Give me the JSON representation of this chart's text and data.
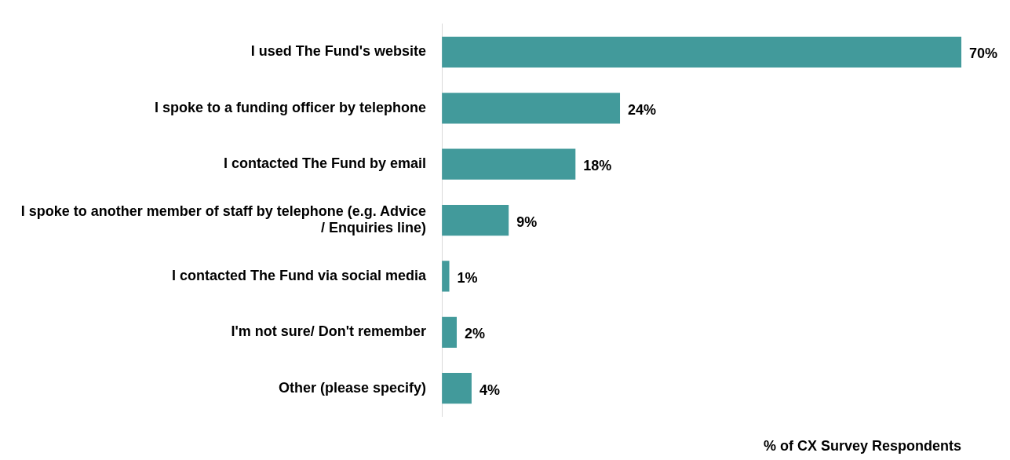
{
  "chart_data": {
    "type": "bar",
    "orientation": "horizontal",
    "categories": [
      "I used The Fund's website",
      "I spoke to a funding officer by telephone",
      "I contacted The Fund by email",
      "I spoke to another member of staff by telephone (e.g. Advice / Enquiries line)",
      "I contacted The Fund via social media",
      "I'm not sure/ Don't remember",
      "Other (please specify)"
    ],
    "values": [
      70,
      24,
      18,
      9,
      1,
      2,
      4
    ],
    "value_labels": [
      "70%",
      "24%",
      "18%",
      "9%",
      "1%",
      "2%",
      "4%"
    ],
    "color": "#429a9b",
    "xlabel": "% of CX Survey Respondents",
    "grid": false,
    "legend": false
  }
}
